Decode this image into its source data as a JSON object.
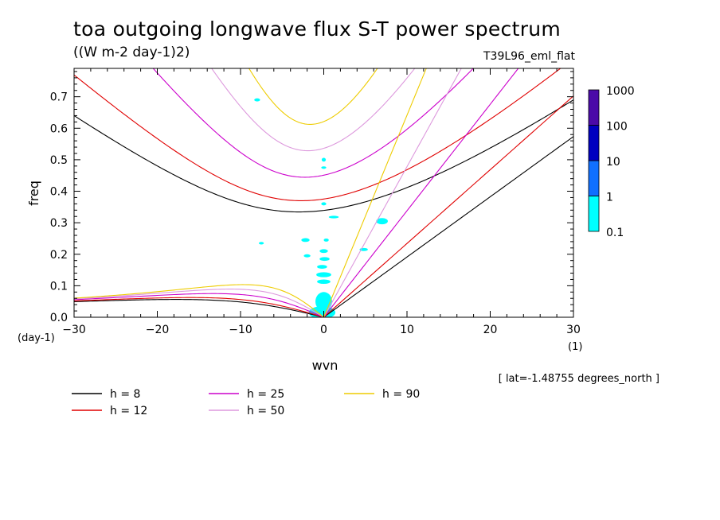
{
  "page": {
    "title": "toa outgoing longwave flux S-T power spectrum",
    "unit": "((W m-2 day-1)2)",
    "experiment": "T39L96_eml_flat",
    "lat_note": "[ lat=-1.48755 degrees_north ]"
  },
  "chart_data": {
    "type": "contour",
    "title": "toa outgoing longwave flux S-T power spectrum",
    "subtitle": "((W m-2 day-1)2)",
    "xlabel": "wvn",
    "ylabel": "freq",
    "x_unit": "(1)",
    "y_unit": "(day-1)",
    "xlim": [
      -30,
      30
    ],
    "ylim": [
      0,
      0.79
    ],
    "xticks": [
      -30,
      -20,
      -10,
      0,
      10,
      20,
      30
    ],
    "yticks": [
      0.0,
      0.1,
      0.2,
      0.3,
      0.4,
      0.5,
      0.6,
      0.7
    ],
    "ytick_labels": [
      "0.0",
      "0.1",
      "0.2",
      "0.3",
      "0.4",
      "0.5",
      "0.6",
      "0.7"
    ],
    "colorbar": {
      "levels": [
        0.1,
        1,
        10,
        100,
        1000
      ],
      "labels": [
        "0.1",
        "1",
        "10",
        "100",
        "1000"
      ],
      "colors": [
        "#00ffff",
        "#1070ff",
        "#0000c0",
        "#4b0aa8"
      ]
    },
    "dispersion_curves": [
      {
        "label": "h =  8",
        "h": 8,
        "color": "#000000"
      },
      {
        "label": "h = 12",
        "h": 12,
        "color": "#e00000"
      },
      {
        "label": "h = 25",
        "h": 25,
        "color": "#cc00cc"
      },
      {
        "label": "h = 50",
        "h": 50,
        "color": "#dd99dd"
      },
      {
        "label": "h = 90",
        "h": 90,
        "color": "#eecc00"
      }
    ],
    "power_contours_01_to_1": [
      {
        "x": 0.0,
        "y": 0.05,
        "rx": 1.0,
        "ry": 0.03
      },
      {
        "x": -0.2,
        "y": 0.015,
        "rx": 1.6,
        "ry": 0.02
      },
      {
        "x": 0.0,
        "y": 0.135,
        "rx": 0.9,
        "ry": 0.008
      },
      {
        "x": 0.0,
        "y": 0.113,
        "rx": 0.8,
        "ry": 0.007
      },
      {
        "x": -0.2,
        "y": 0.16,
        "rx": 0.6,
        "ry": 0.006
      },
      {
        "x": 0.0,
        "y": 0.21,
        "rx": 0.5,
        "ry": 0.006
      },
      {
        "x": -2.2,
        "y": 0.245,
        "rx": 0.5,
        "ry": 0.006
      },
      {
        "x": 0.3,
        "y": 0.245,
        "rx": 0.3,
        "ry": 0.005
      },
      {
        "x": -2.0,
        "y": 0.195,
        "rx": 0.4,
        "ry": 0.005
      },
      {
        "x": 0.1,
        "y": 0.185,
        "rx": 0.6,
        "ry": 0.006
      },
      {
        "x": 4.8,
        "y": 0.215,
        "rx": 0.5,
        "ry": 0.005
      },
      {
        "x": 7.0,
        "y": 0.305,
        "rx": 0.7,
        "ry": 0.01
      },
      {
        "x": 0.0,
        "y": 0.36,
        "rx": 0.3,
        "ry": 0.005
      },
      {
        "x": 0.0,
        "y": 0.5,
        "rx": 0.25,
        "ry": 0.006
      },
      {
        "x": 0.0,
        "y": 0.475,
        "rx": 0.3,
        "ry": 0.004
      },
      {
        "x": -7.5,
        "y": 0.235,
        "rx": 0.3,
        "ry": 0.004
      },
      {
        "x": -8.0,
        "y": 0.69,
        "rx": 0.35,
        "ry": 0.005
      },
      {
        "x": 1.2,
        "y": 0.318,
        "rx": 0.6,
        "ry": 0.004
      }
    ]
  }
}
